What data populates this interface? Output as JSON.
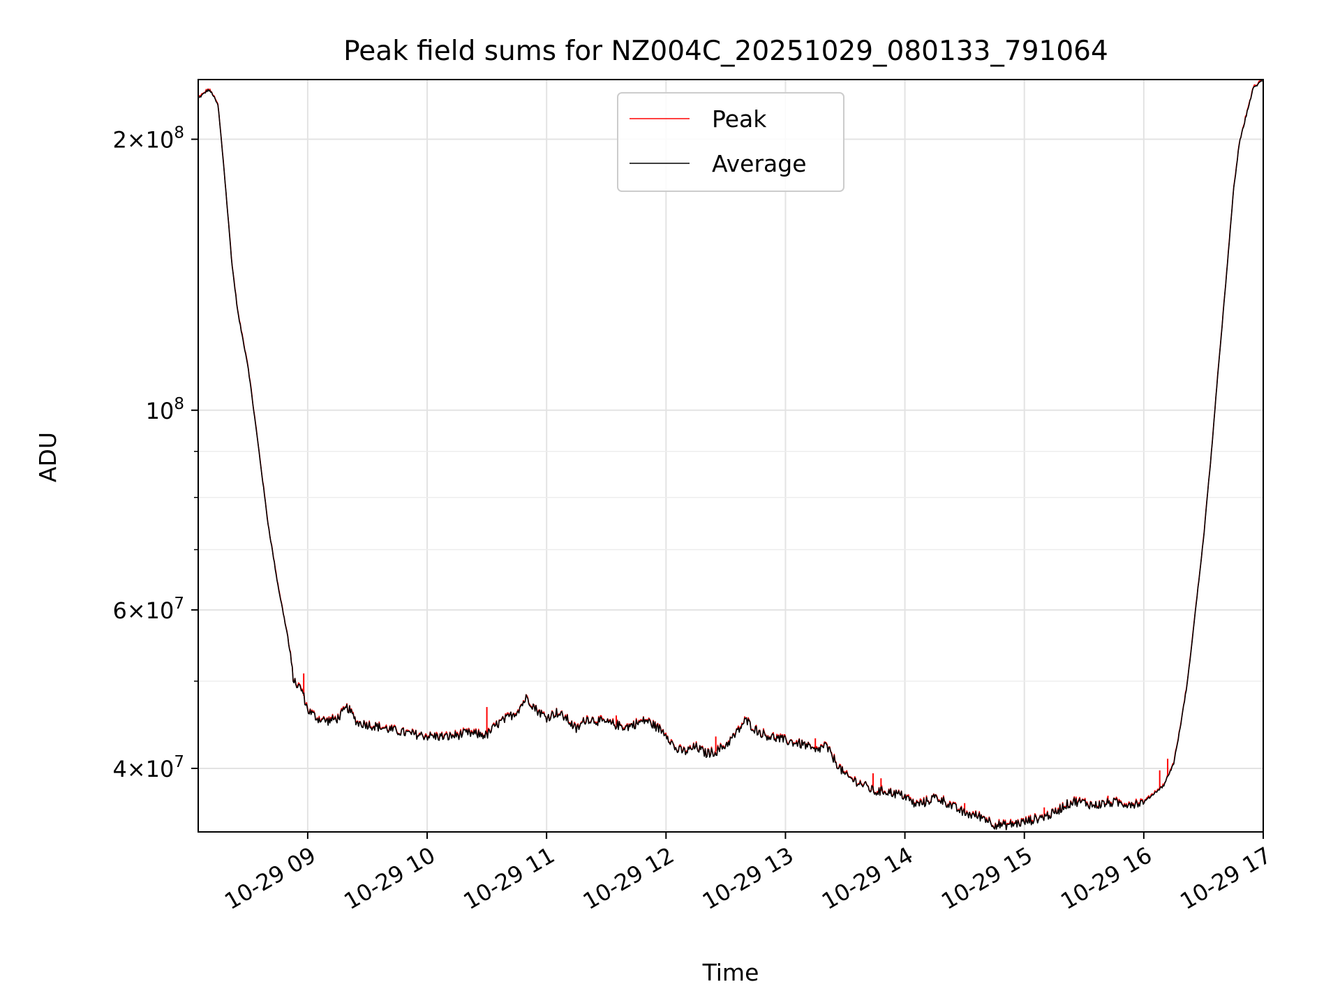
{
  "chart_data": {
    "type": "line",
    "title": "Peak field sums for NZ004C_20251029_080133_791064",
    "xlabel": "Time",
    "ylabel": "ADU",
    "x_range": [
      "2025-10-29 08:05",
      "2025-10-29 17:00"
    ],
    "ylim": [
      34000000,
      233000000
    ],
    "y_scale": "log",
    "grid": true,
    "legend_position": "upper center",
    "x_ticks": [
      "10-29 09",
      "10-29 10",
      "10-29 11",
      "10-29 12",
      "10-29 13",
      "10-29 14",
      "10-29 15",
      "10-29 16",
      "10-29 17"
    ],
    "y_ticks": [
      {
        "value": 40000000,
        "mantissa": "4",
        "exponent": "7"
      },
      {
        "value": 60000000,
        "mantissa": "6",
        "exponent": "7"
      },
      {
        "value": 100000000,
        "mantissa": "",
        "exponent": "8"
      },
      {
        "value": 200000000,
        "mantissa": "2",
        "exponent": "8"
      }
    ],
    "series": [
      {
        "name": "Average",
        "color": "#000000",
        "points": [
          [
            "08:05",
            222000000
          ],
          [
            "08:10",
            227000000
          ],
          [
            "08:12",
            225000000
          ],
          [
            "08:15",
            218000000
          ],
          [
            "08:18",
            185000000
          ],
          [
            "08:22",
            145000000
          ],
          [
            "08:25",
            128000000
          ],
          [
            "08:30",
            112000000
          ],
          [
            "08:35",
            92000000
          ],
          [
            "08:40",
            75000000
          ],
          [
            "08:45",
            64000000
          ],
          [
            "08:50",
            56000000
          ],
          [
            "08:53",
            50000000
          ],
          [
            "08:57",
            49000000
          ],
          [
            "09:00",
            46500000
          ],
          [
            "09:05",
            45500000
          ],
          [
            "09:10",
            45200000
          ],
          [
            "09:15",
            45500000
          ],
          [
            "09:20",
            46800000
          ],
          [
            "09:25",
            45000000
          ],
          [
            "09:30",
            44800000
          ],
          [
            "09:40",
            44300000
          ],
          [
            "09:50",
            43800000
          ],
          [
            "10:00",
            43500000
          ],
          [
            "10:10",
            43400000
          ],
          [
            "10:20",
            43800000
          ],
          [
            "10:30",
            43600000
          ],
          [
            "10:35",
            44800000
          ],
          [
            "10:40",
            45500000
          ],
          [
            "10:45",
            46300000
          ],
          [
            "10:50",
            48000000
          ],
          [
            "10:55",
            46500000
          ],
          [
            "11:00",
            45600000
          ],
          [
            "11:05",
            46200000
          ],
          [
            "11:10",
            45500000
          ],
          [
            "11:15",
            44200000
          ],
          [
            "11:20",
            45500000
          ],
          [
            "11:30",
            45000000
          ],
          [
            "11:40",
            44500000
          ],
          [
            "11:50",
            45300000
          ],
          [
            "12:00",
            43800000
          ],
          [
            "12:05",
            42000000
          ],
          [
            "12:10",
            41800000
          ],
          [
            "12:15",
            42300000
          ],
          [
            "12:20",
            41600000
          ],
          [
            "12:25",
            41800000
          ],
          [
            "12:30",
            42500000
          ],
          [
            "12:35",
            43700000
          ],
          [
            "12:40",
            45300000
          ],
          [
            "12:45",
            44200000
          ],
          [
            "12:50",
            43600000
          ],
          [
            "13:00",
            43000000
          ],
          [
            "13:10",
            42500000
          ],
          [
            "13:15",
            41800000
          ],
          [
            "13:20",
            42500000
          ],
          [
            "13:25",
            40800000
          ],
          [
            "13:30",
            39300000
          ],
          [
            "13:40",
            38300000
          ],
          [
            "13:45",
            37700000
          ],
          [
            "13:50",
            37800000
          ],
          [
            "14:00",
            37300000
          ],
          [
            "14:05",
            36500000
          ],
          [
            "14:10",
            36700000
          ],
          [
            "14:15",
            37200000
          ],
          [
            "14:20",
            36800000
          ],
          [
            "14:25",
            36200000
          ],
          [
            "14:30",
            35700000
          ],
          [
            "14:40",
            35300000
          ],
          [
            "14:45",
            34700000
          ],
          [
            "14:50",
            34600000
          ],
          [
            "15:00",
            34900000
          ],
          [
            "15:10",
            35400000
          ],
          [
            "15:15",
            35700000
          ],
          [
            "15:20",
            36400000
          ],
          [
            "15:25",
            36800000
          ],
          [
            "15:30",
            36700000
          ],
          [
            "15:35",
            36400000
          ],
          [
            "15:40",
            36600000
          ],
          [
            "15:45",
            36700000
          ],
          [
            "15:50",
            36600000
          ],
          [
            "15:55",
            36600000
          ],
          [
            "16:00",
            36700000
          ],
          [
            "16:05",
            37500000
          ],
          [
            "16:10",
            38300000
          ],
          [
            "16:15",
            40500000
          ],
          [
            "16:18",
            44000000
          ],
          [
            "16:22",
            50000000
          ],
          [
            "16:26",
            60000000
          ],
          [
            "16:30",
            72000000
          ],
          [
            "16:34",
            90000000
          ],
          [
            "16:38",
            115000000
          ],
          [
            "16:42",
            145000000
          ],
          [
            "16:45",
            175000000
          ],
          [
            "16:48",
            198000000
          ],
          [
            "16:52",
            215000000
          ],
          [
            "16:55",
            228000000
          ],
          [
            "17:00",
            233000000
          ]
        ]
      },
      {
        "name": "Peak",
        "color": "#ff0000",
        "spikes": [
          [
            "08:58",
            51000000
          ],
          [
            "10:30",
            46800000
          ],
          [
            "11:35",
            45800000
          ],
          [
            "12:25",
            43400000
          ],
          [
            "13:15",
            43200000
          ],
          [
            "13:44",
            39500000
          ],
          [
            "13:48",
            39000000
          ],
          [
            "14:30",
            36600000
          ],
          [
            "15:10",
            36200000
          ],
          [
            "15:42",
            37300000
          ],
          [
            "16:08",
            39800000
          ],
          [
            "16:12",
            41000000
          ]
        ]
      }
    ]
  }
}
